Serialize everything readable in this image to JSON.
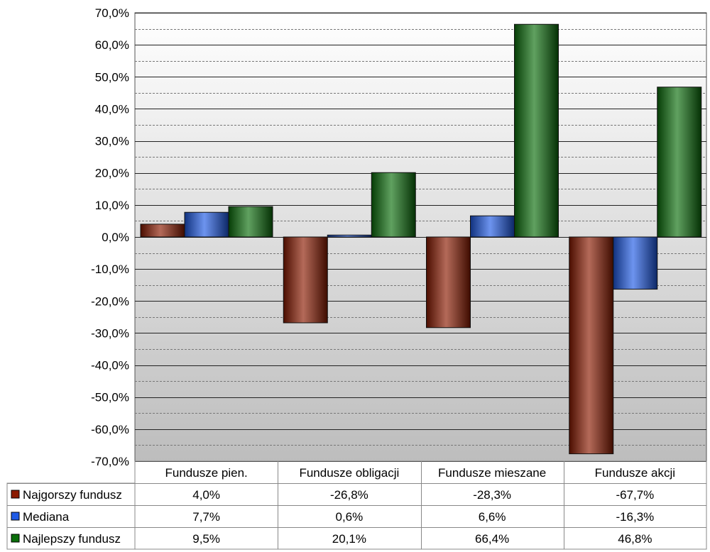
{
  "chart_data": {
    "type": "bar",
    "categories": [
      "Fundusze pien.",
      "Fundusze obligacji",
      "Fundusze mieszane",
      "Fundusze akcji"
    ],
    "series": [
      {
        "name": "Najgorszy fundusz",
        "color": "#8B1A00",
        "values": [
          4.0,
          -26.8,
          -28.3,
          -67.7
        ],
        "labels": [
          "4,0%",
          "-26,8%",
          "-28,3%",
          "-67,7%"
        ]
      },
      {
        "name": "Mediana",
        "color": "#1E5AE6",
        "values": [
          7.7,
          0.6,
          6.6,
          -16.3
        ],
        "labels": [
          "7,7%",
          "0,6%",
          "6,6%",
          "-16,3%"
        ]
      },
      {
        "name": "Najlepszy fundusz",
        "color": "#0A6E0A",
        "values": [
          9.5,
          20.1,
          66.4,
          46.8
        ],
        "labels": [
          "9,5%",
          "20,1%",
          "66,4%",
          "46,8%"
        ]
      }
    ],
    "ylim": [
      -70,
      70
    ],
    "yticks": [
      70,
      60,
      50,
      40,
      30,
      20,
      10,
      0,
      -10,
      -20,
      -30,
      -40,
      -50,
      -60,
      -70
    ],
    "ytick_labels": [
      "70,0%",
      "60,0%",
      "50,0%",
      "40,0%",
      "30,0%",
      "20,0%",
      "10,0%",
      "0,0%",
      "-10,0%",
      "-20,0%",
      "-30,0%",
      "-40,0%",
      "-50,0%",
      "-60,0%",
      "-70,0%"
    ],
    "grid": true,
    "legend": "data table below chart"
  }
}
